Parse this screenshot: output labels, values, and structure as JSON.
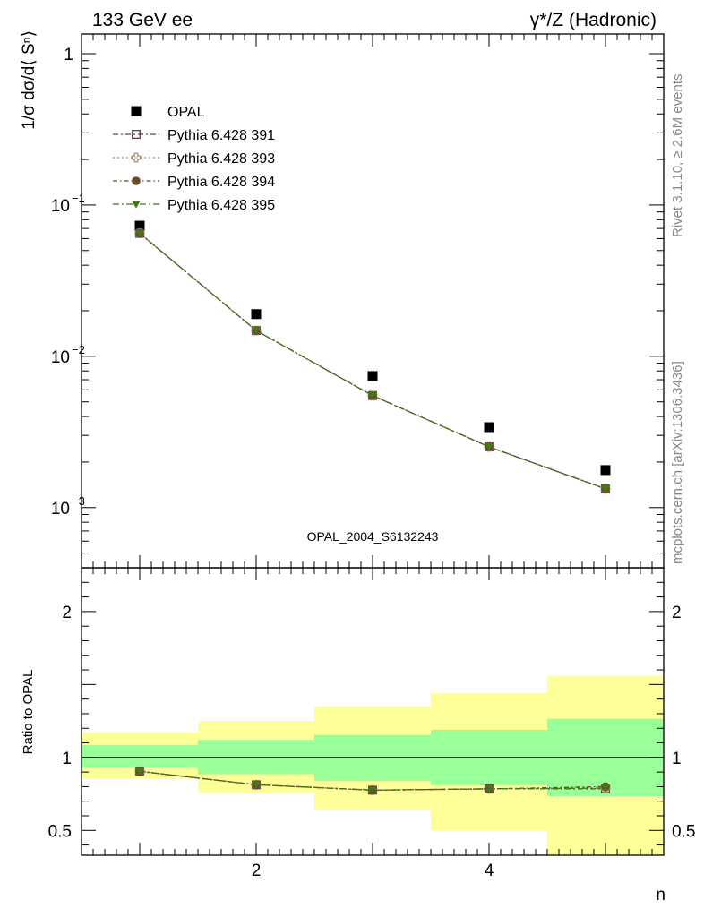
{
  "header": {
    "left_label": "133 GeV ee",
    "right_label": "γ*/Z (Hadronic)"
  },
  "side_text": {
    "rivet": "Rivet 3.1.10, ≥ 2.6M events",
    "mcplots": "mcplots.cern.ch [arXiv:1306.3436]"
  },
  "analysis_id": "OPAL_2004_S6132243",
  "chart_data": [
    {
      "type": "scatter",
      "panel": "main",
      "ylabel": "1/σ dσ/d⟨ Sⁿ⟩",
      "yscale": "log",
      "ylim": [
        0.0004,
        1.35
      ],
      "xlim": [
        0.5,
        5.5
      ],
      "yticks": [
        {
          "value": 1,
          "base": "1",
          "exp": ""
        },
        {
          "value": 0.1,
          "base": "10",
          "exp": "−1"
        },
        {
          "value": 0.01,
          "base": "10",
          "exp": "−2"
        },
        {
          "value": 0.001,
          "base": "10",
          "exp": "−3"
        }
      ],
      "legend_position": "top-left",
      "x": [
        1,
        2,
        3,
        4,
        5
      ],
      "series": [
        {
          "name": "OPAL",
          "marker": "square-filled",
          "color": "#000000",
          "values": [
            0.073,
            0.019,
            0.0074,
            0.0034,
            0.00177
          ]
        },
        {
          "name": "Pythia 6.428 391",
          "marker": "square-open",
          "color": "#6b3a4a",
          "values": [
            0.065,
            0.0148,
            0.0055,
            0.00252,
            0.00133
          ]
        },
        {
          "name": "Pythia 6.428 393",
          "marker": "cross-open",
          "color": "#a08860",
          "values": [
            0.065,
            0.0148,
            0.0055,
            0.00252,
            0.00133
          ]
        },
        {
          "name": "Pythia 6.428 394",
          "marker": "circle-filled",
          "color": "#6b4a2c",
          "values": [
            0.065,
            0.0148,
            0.0055,
            0.00252,
            0.00133
          ]
        },
        {
          "name": "Pythia 6.428 395",
          "marker": "triangle-down-filled",
          "color": "#3f7a16",
          "values": [
            0.065,
            0.0148,
            0.0055,
            0.00252,
            0.00133
          ]
        }
      ]
    },
    {
      "type": "line",
      "panel": "ratio",
      "ylabel": "Ratio to OPAL",
      "xlabel": "n",
      "ylim": [
        0.33,
        2.3
      ],
      "xlim": [
        0.5,
        5.5
      ],
      "yticks": [
        2,
        1,
        0.5
      ],
      "yticklabels": [
        "2",
        "1",
        "0.5"
      ],
      "xticks": [
        2,
        4
      ],
      "xticklabels": [
        "2",
        "4"
      ],
      "bands": {
        "bin_edges": [
          0.5,
          1.5,
          2.5,
          3.5,
          4.5,
          5.5
        ],
        "inner": {
          "color": "#99ff99",
          "low": [
            0.93,
            0.885,
            0.84,
            0.81,
            0.735
          ],
          "high": [
            1.085,
            1.12,
            1.155,
            1.19,
            1.265
          ]
        },
        "outer": {
          "color": "#ffff99",
          "low": [
            0.855,
            0.76,
            0.64,
            0.5,
            0.33
          ],
          "high": [
            1.17,
            1.25,
            1.35,
            1.44,
            1.56
          ]
        }
      },
      "x": [
        1,
        2,
        3,
        4,
        5
      ],
      "series": [
        {
          "name": "Pythia 6.428 391",
          "color": "#6b3a4a",
          "values": [
            0.905,
            0.813,
            0.776,
            0.785,
            0.785
          ]
        },
        {
          "name": "Pythia 6.428 393",
          "color": "#a08860",
          "values": [
            0.905,
            0.813,
            0.776,
            0.785,
            0.79
          ]
        },
        {
          "name": "Pythia 6.428 394",
          "color": "#6b4a2c",
          "values": [
            0.905,
            0.813,
            0.776,
            0.785,
            0.8
          ]
        },
        {
          "name": "Pythia 6.428 395",
          "color": "#3f7a16",
          "values": [
            0.905,
            0.813,
            0.776,
            0.785,
            0.79
          ]
        }
      ]
    }
  ]
}
